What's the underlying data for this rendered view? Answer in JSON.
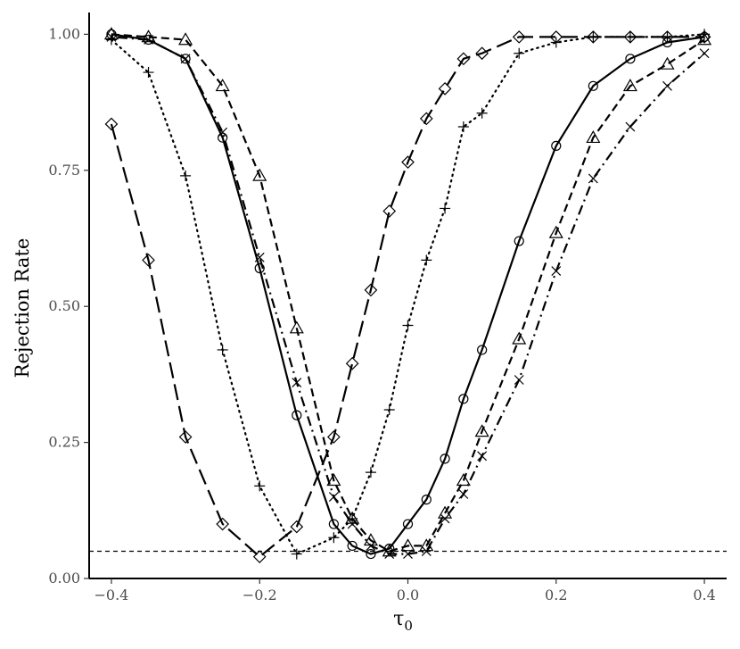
{
  "chart_data": {
    "type": "line",
    "title": "",
    "xlabel": "τ",
    "xlabel_subscript": "0",
    "ylabel": "Rejection Rate",
    "xlim": [
      -0.43,
      0.43
    ],
    "ylim": [
      0.0,
      1.04
    ],
    "x_ticks": [
      -0.4,
      -0.2,
      0.0,
      0.2,
      0.4
    ],
    "x_tick_labels": [
      "−0.4",
      "−0.2",
      "0.0",
      "0.2",
      "0.4"
    ],
    "y_ticks": [
      0.0,
      0.25,
      0.5,
      0.75,
      1.0
    ],
    "y_tick_labels": [
      "0.00",
      "0.25",
      "0.50",
      "0.75",
      "1.00"
    ],
    "grid": false,
    "legend": "none",
    "reference_line": {
      "y": 0.05,
      "style": "dashed"
    },
    "series": [
      {
        "linestyle": "solid",
        "marker": "circle",
        "x": [
          -0.4,
          -0.35,
          -0.3,
          -0.25,
          -0.2,
          -0.15,
          -0.1,
          -0.075,
          -0.05,
          -0.025,
          0.0,
          0.025,
          0.05,
          0.075,
          0.1,
          0.15,
          0.2,
          0.25,
          0.3,
          0.35,
          0.4
        ],
        "y": [
          1.0,
          0.99,
          0.955,
          0.81,
          0.57,
          0.3,
          0.1,
          0.06,
          0.045,
          0.055,
          0.1,
          0.145,
          0.22,
          0.33,
          0.42,
          0.62,
          0.795,
          0.905,
          0.955,
          0.985,
          0.995
        ]
      },
      {
        "linestyle": "dashed",
        "marker": "triangle",
        "x": [
          -0.4,
          -0.35,
          -0.3,
          -0.25,
          -0.2,
          -0.15,
          -0.1,
          -0.075,
          -0.05,
          -0.025,
          0.0,
          0.025,
          0.05,
          0.075,
          0.1,
          0.15,
          0.2,
          0.25,
          0.3,
          0.35,
          0.4
        ],
        "y": [
          1.0,
          0.995,
          0.99,
          0.905,
          0.74,
          0.46,
          0.18,
          0.11,
          0.07,
          0.05,
          0.06,
          0.06,
          0.12,
          0.18,
          0.27,
          0.44,
          0.635,
          0.81,
          0.905,
          0.945,
          0.99
        ]
      },
      {
        "linestyle": "dotdash",
        "marker": "x",
        "x": [
          -0.4,
          -0.35,
          -0.3,
          -0.25,
          -0.2,
          -0.15,
          -0.1,
          -0.075,
          -0.05,
          -0.025,
          0.0,
          0.025,
          0.05,
          0.075,
          0.1,
          0.15,
          0.2,
          0.25,
          0.3,
          0.35,
          0.4
        ],
        "y": [
          0.995,
          0.99,
          0.955,
          0.82,
          0.59,
          0.36,
          0.15,
          0.1,
          0.06,
          0.045,
          0.045,
          0.05,
          0.11,
          0.155,
          0.225,
          0.365,
          0.565,
          0.735,
          0.83,
          0.905,
          0.965
        ]
      },
      {
        "linestyle": "dotted",
        "marker": "plus",
        "x": [
          -0.4,
          -0.35,
          -0.3,
          -0.25,
          -0.2,
          -0.15,
          -0.1,
          -0.075,
          -0.05,
          -0.025,
          0.0,
          0.025,
          0.05,
          0.075,
          0.1,
          0.15,
          0.2,
          0.25,
          0.3,
          0.35,
          0.4
        ],
        "y": [
          0.99,
          0.93,
          0.74,
          0.42,
          0.17,
          0.045,
          0.075,
          0.11,
          0.195,
          0.31,
          0.465,
          0.585,
          0.68,
          0.83,
          0.855,
          0.965,
          0.985,
          0.995,
          0.995,
          0.995,
          1.0
        ]
      },
      {
        "linestyle": "longdash",
        "marker": "diamond",
        "x": [
          -0.4,
          -0.35,
          -0.3,
          -0.25,
          -0.2,
          -0.15,
          -0.1,
          -0.075,
          -0.05,
          -0.025,
          0.0,
          0.025,
          0.05,
          0.075,
          0.1,
          0.15,
          0.2,
          0.25,
          0.3,
          0.35,
          0.4
        ],
        "y": [
          0.835,
          0.585,
          0.26,
          0.1,
          0.04,
          0.095,
          0.26,
          0.395,
          0.53,
          0.675,
          0.765,
          0.845,
          0.9,
          0.955,
          0.965,
          0.995,
          0.995,
          0.995,
          0.995,
          0.995,
          0.995
        ]
      }
    ]
  }
}
